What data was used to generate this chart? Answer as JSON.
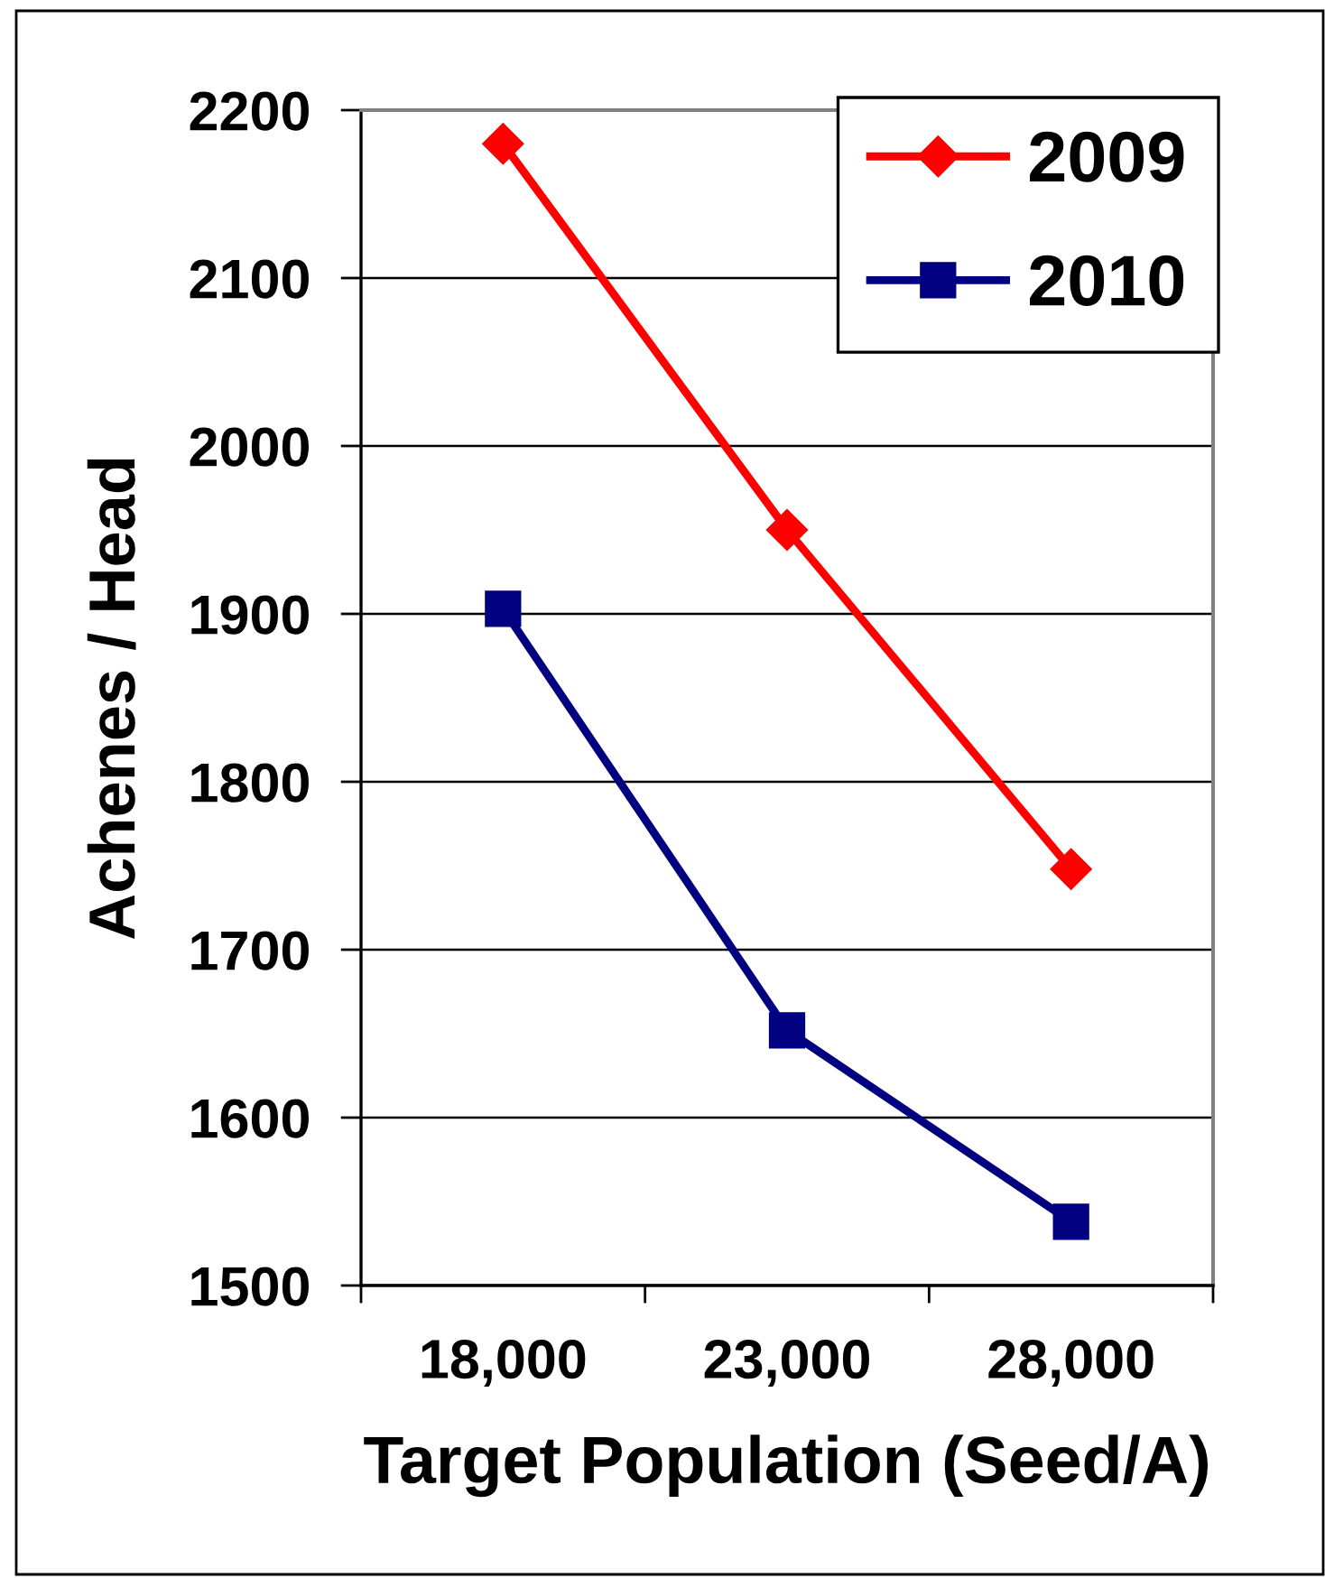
{
  "chart_data": {
    "type": "line",
    "xlabel": "Target Population (Seed/A)",
    "ylabel": "Achenes / Head",
    "categories": [
      "18,000",
      "23,000",
      "28,000"
    ],
    "series": [
      {
        "name": "2009",
        "color": "#ff0000",
        "marker": "diamond",
        "values": [
          2180,
          1950,
          1748
        ]
      },
      {
        "name": "2010",
        "color": "#000080",
        "marker": "square",
        "values": [
          1903,
          1652,
          1538
        ]
      }
    ],
    "ylim": [
      1500,
      2200
    ],
    "yticks": [
      1500,
      1600,
      1700,
      1800,
      1900,
      2000,
      2100,
      2200
    ],
    "grid": "y",
    "legend": "top right",
    "line_style": "solid"
  }
}
